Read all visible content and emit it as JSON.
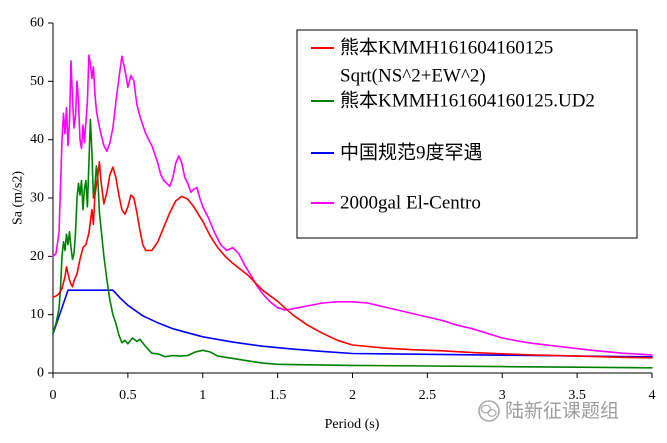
{
  "chart_data": {
    "type": "line",
    "title": "",
    "xlabel": "Period (s)",
    "ylabel": "Sa (m/s2)",
    "xlim": [
      0,
      4
    ],
    "ylim": [
      0,
      60
    ],
    "x_ticks": [
      0,
      0.5,
      1,
      1.5,
      2,
      2.5,
      3,
      3.5,
      4
    ],
    "x_tick_labels": [
      "0",
      "0.5",
      "1",
      "1.5",
      "2",
      "2.5",
      "3",
      "3.5",
      "4"
    ],
    "y_ticks": [
      0,
      10,
      20,
      30,
      40,
      50,
      60
    ],
    "y_tick_labels": [
      "0",
      "10",
      "20",
      "30",
      "40",
      "50",
      "60"
    ],
    "grid": false,
    "legend_position": "top-right",
    "series": [
      {
        "legend_lines": [
          "熊本KMMH161604160125",
          "Sqrt(NS^2+EW^2)"
        ],
        "color": "#FF0000",
        "points": [
          [
            0,
            13.0
          ],
          [
            0.02,
            13.2
          ],
          [
            0.04,
            13.6
          ],
          [
            0.06,
            14.5
          ],
          [
            0.08,
            16.5
          ],
          [
            0.09,
            18.2
          ],
          [
            0.1,
            17.0
          ],
          [
            0.11,
            16.0
          ],
          [
            0.12,
            15.2
          ],
          [
            0.13,
            14.8
          ],
          [
            0.14,
            15.8
          ],
          [
            0.16,
            17.0
          ],
          [
            0.18,
            19.5
          ],
          [
            0.2,
            21.5
          ],
          [
            0.22,
            22.0
          ],
          [
            0.24,
            24.0
          ],
          [
            0.26,
            28.0
          ],
          [
            0.27,
            25.5
          ],
          [
            0.28,
            30.5
          ],
          [
            0.3,
            34.0
          ],
          [
            0.31,
            36.2
          ],
          [
            0.32,
            33.0
          ],
          [
            0.34,
            29.0
          ],
          [
            0.36,
            31.0
          ],
          [
            0.38,
            34.0
          ],
          [
            0.4,
            35.3
          ],
          [
            0.42,
            33.5
          ],
          [
            0.44,
            30.5
          ],
          [
            0.46,
            28.0
          ],
          [
            0.48,
            27.2
          ],
          [
            0.5,
            28.5
          ],
          [
            0.52,
            30.5
          ],
          [
            0.54,
            30.0
          ],
          [
            0.56,
            27.5
          ],
          [
            0.58,
            24.5
          ],
          [
            0.6,
            22.0
          ],
          [
            0.62,
            21.0
          ],
          [
            0.66,
            21.0
          ],
          [
            0.7,
            22.5
          ],
          [
            0.74,
            25.0
          ],
          [
            0.78,
            27.5
          ],
          [
            0.82,
            29.5
          ],
          [
            0.86,
            30.3
          ],
          [
            0.9,
            29.8
          ],
          [
            0.94,
            28.5
          ],
          [
            0.98,
            26.8
          ],
          [
            1.0,
            26.0
          ],
          [
            1.05,
            23.5
          ],
          [
            1.1,
            21.5
          ],
          [
            1.15,
            20.0
          ],
          [
            1.2,
            18.8
          ],
          [
            1.3,
            16.8
          ],
          [
            1.4,
            14.2
          ],
          [
            1.5,
            12.3
          ],
          [
            1.6,
            10.0
          ],
          [
            1.7,
            8.2
          ],
          [
            1.8,
            6.8
          ],
          [
            1.9,
            5.6
          ],
          [
            2.0,
            4.8
          ],
          [
            2.2,
            4.3
          ],
          [
            2.4,
            4.0
          ],
          [
            2.6,
            3.8
          ],
          [
            2.8,
            3.5
          ],
          [
            3.0,
            3.3
          ],
          [
            3.2,
            3.1
          ],
          [
            3.5,
            2.9
          ],
          [
            3.8,
            2.7
          ],
          [
            4.0,
            2.6
          ]
        ]
      },
      {
        "legend_lines": [
          "熊本KMMH161604160125.UD2"
        ],
        "color": "#008000",
        "points": [
          [
            0,
            6.8
          ],
          [
            0.02,
            8.5
          ],
          [
            0.04,
            11.0
          ],
          [
            0.05,
            14.5
          ],
          [
            0.06,
            20.0
          ],
          [
            0.07,
            22.5
          ],
          [
            0.08,
            21.0
          ],
          [
            0.09,
            23.8
          ],
          [
            0.1,
            22.0
          ],
          [
            0.11,
            24.2
          ],
          [
            0.12,
            21.5
          ],
          [
            0.13,
            19.5
          ],
          [
            0.14,
            20.5
          ],
          [
            0.15,
            24.0
          ],
          [
            0.16,
            30.0
          ],
          [
            0.17,
            32.5
          ],
          [
            0.18,
            30.5
          ],
          [
            0.19,
            33.0
          ],
          [
            0.2,
            28.0
          ],
          [
            0.21,
            31.5
          ],
          [
            0.22,
            33.0
          ],
          [
            0.23,
            28.5
          ],
          [
            0.24,
            36.0
          ],
          [
            0.25,
            43.5
          ],
          [
            0.26,
            38.0
          ],
          [
            0.27,
            30.0
          ],
          [
            0.28,
            32.0
          ],
          [
            0.29,
            35.5
          ],
          [
            0.3,
            33.0
          ],
          [
            0.31,
            27.5
          ],
          [
            0.32,
            25.0
          ],
          [
            0.34,
            20.0
          ],
          [
            0.36,
            16.0
          ],
          [
            0.38,
            12.5
          ],
          [
            0.4,
            10.0
          ],
          [
            0.42,
            8.5
          ],
          [
            0.44,
            6.5
          ],
          [
            0.46,
            5.2
          ],
          [
            0.48,
            5.6
          ],
          [
            0.5,
            5.0
          ],
          [
            0.53,
            6.0
          ],
          [
            0.56,
            5.4
          ],
          [
            0.58,
            5.8
          ],
          [
            0.62,
            4.5
          ],
          [
            0.66,
            3.4
          ],
          [
            0.7,
            3.3
          ],
          [
            0.75,
            2.8
          ],
          [
            0.8,
            3.0
          ],
          [
            0.85,
            2.9
          ],
          [
            0.9,
            3.0
          ],
          [
            0.95,
            3.6
          ],
          [
            1.0,
            3.9
          ],
          [
            1.05,
            3.6
          ],
          [
            1.1,
            2.9
          ],
          [
            1.2,
            2.5
          ],
          [
            1.3,
            2.1
          ],
          [
            1.4,
            1.7
          ],
          [
            1.5,
            1.5
          ],
          [
            1.7,
            1.4
          ],
          [
            2.0,
            1.3
          ],
          [
            2.5,
            1.2
          ],
          [
            3.0,
            1.1
          ],
          [
            3.5,
            1.0
          ],
          [
            4.0,
            0.9
          ]
        ]
      },
      {
        "legend_lines": [
          "中国规范9度罕遇"
        ],
        "color": "#0000FF",
        "points": [
          [
            0,
            6.7
          ],
          [
            0.1,
            14.2
          ],
          [
            0.4,
            14.2
          ],
          [
            0.45,
            12.8
          ],
          [
            0.5,
            11.6
          ],
          [
            0.6,
            9.8
          ],
          [
            0.7,
            8.6
          ],
          [
            0.8,
            7.6
          ],
          [
            0.9,
            6.9
          ],
          [
            1.0,
            6.2
          ],
          [
            1.2,
            5.3
          ],
          [
            1.4,
            4.6
          ],
          [
            1.6,
            4.1
          ],
          [
            1.8,
            3.7
          ],
          [
            2.0,
            3.34
          ],
          [
            2.5,
            3.2
          ],
          [
            3.0,
            3.05
          ],
          [
            3.5,
            2.91
          ],
          [
            4.0,
            2.77
          ]
        ]
      },
      {
        "legend_lines": [
          "2000gal El-Centro"
        ],
        "color": "#FF00FF",
        "points": [
          [
            0,
            20.0
          ],
          [
            0.02,
            20.5
          ],
          [
            0.04,
            24.0
          ],
          [
            0.05,
            32.0
          ],
          [
            0.06,
            40.0
          ],
          [
            0.07,
            44.5
          ],
          [
            0.08,
            41.0
          ],
          [
            0.09,
            45.5
          ],
          [
            0.1,
            39.0
          ],
          [
            0.11,
            43.0
          ],
          [
            0.12,
            53.5
          ],
          [
            0.13,
            47.0
          ],
          [
            0.14,
            42.0
          ],
          [
            0.15,
            44.0
          ],
          [
            0.16,
            50.0
          ],
          [
            0.17,
            46.5
          ],
          [
            0.18,
            40.0
          ],
          [
            0.19,
            38.5
          ],
          [
            0.2,
            42.5
          ],
          [
            0.21,
            39.5
          ],
          [
            0.22,
            43.0
          ],
          [
            0.23,
            46.5
          ],
          [
            0.24,
            54.5
          ],
          [
            0.25,
            53.0
          ],
          [
            0.26,
            50.5
          ],
          [
            0.27,
            52.5
          ],
          [
            0.28,
            48.0
          ],
          [
            0.29,
            45.0
          ],
          [
            0.3,
            43.5
          ],
          [
            0.32,
            41.0
          ],
          [
            0.34,
            39.0
          ],
          [
            0.36,
            38.0
          ],
          [
            0.38,
            39.5
          ],
          [
            0.4,
            42.0
          ],
          [
            0.42,
            46.5
          ],
          [
            0.44,
            50.5
          ],
          [
            0.46,
            54.3
          ],
          [
            0.48,
            52.0
          ],
          [
            0.5,
            49.0
          ],
          [
            0.52,
            51.0
          ],
          [
            0.54,
            50.0
          ],
          [
            0.56,
            46.0
          ],
          [
            0.58,
            44.0
          ],
          [
            0.6,
            42.5
          ],
          [
            0.62,
            41.0
          ],
          [
            0.64,
            40.0
          ],
          [
            0.66,
            39.0
          ],
          [
            0.68,
            37.5
          ],
          [
            0.7,
            36.0
          ],
          [
            0.72,
            34.0
          ],
          [
            0.74,
            33.0
          ],
          [
            0.76,
            32.5
          ],
          [
            0.78,
            32.0
          ],
          [
            0.8,
            33.5
          ],
          [
            0.82,
            36.0
          ],
          [
            0.84,
            37.2
          ],
          [
            0.86,
            36.0
          ],
          [
            0.88,
            33.5
          ],
          [
            0.9,
            32.5
          ],
          [
            0.92,
            31.0
          ],
          [
            0.94,
            31.5
          ],
          [
            0.96,
            31.8
          ],
          [
            0.98,
            30.0
          ],
          [
            1.0,
            28.5
          ],
          [
            1.04,
            26.5
          ],
          [
            1.08,
            24.0
          ],
          [
            1.12,
            22.0
          ],
          [
            1.16,
            21.0
          ],
          [
            1.2,
            21.5
          ],
          [
            1.24,
            20.5
          ],
          [
            1.28,
            18.5
          ],
          [
            1.32,
            16.8
          ],
          [
            1.36,
            15.0
          ],
          [
            1.4,
            13.6
          ],
          [
            1.45,
            12.2
          ],
          [
            1.5,
            11.2
          ],
          [
            1.55,
            10.8
          ],
          [
            1.6,
            11.0
          ],
          [
            1.7,
            11.5
          ],
          [
            1.8,
            12.0
          ],
          [
            1.9,
            12.2
          ],
          [
            2.0,
            12.2
          ],
          [
            2.1,
            12.0
          ],
          [
            2.2,
            11.4
          ],
          [
            2.3,
            10.8
          ],
          [
            2.4,
            10.2
          ],
          [
            2.5,
            9.6
          ],
          [
            2.6,
            9.0
          ],
          [
            2.7,
            8.2
          ],
          [
            2.8,
            7.6
          ],
          [
            2.9,
            6.8
          ],
          [
            3.0,
            6.0
          ],
          [
            3.1,
            5.5
          ],
          [
            3.2,
            5.1
          ],
          [
            3.4,
            4.5
          ],
          [
            3.6,
            3.9
          ],
          [
            3.8,
            3.4
          ],
          [
            4.0,
            3.1
          ]
        ]
      }
    ]
  },
  "watermark": {
    "text": "陆新征课题组",
    "icon": "wechat-icon"
  }
}
